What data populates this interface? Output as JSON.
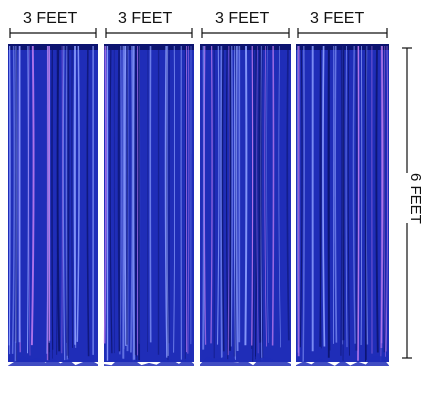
{
  "image": {
    "background": "#ffffff",
    "curtain_color": "#1f2db8",
    "curtain_dark": "#0c1470",
    "curtain_highlight": "#8ea0ff",
    "curtain_sheen": "#c07cf0"
  },
  "dimensions": {
    "panel_labels": [
      "3 FEET",
      "3 FEET",
      "3 FEET",
      "3 FEET"
    ],
    "height_label": "6 FEET"
  },
  "curtains": {
    "count": 4
  }
}
